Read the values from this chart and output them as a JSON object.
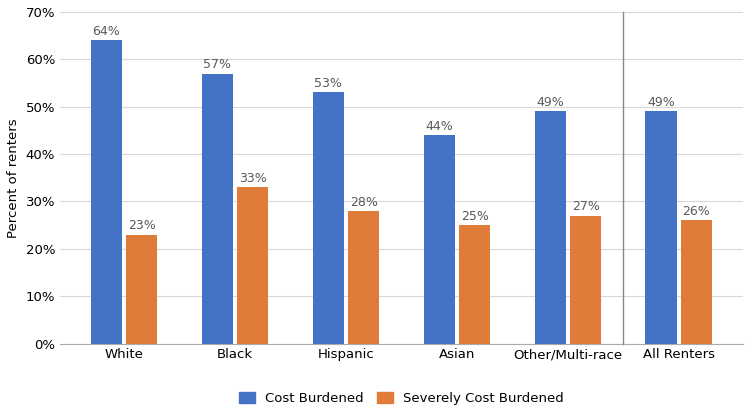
{
  "categories": [
    "White",
    "Black",
    "Hispanic",
    "Asian",
    "Other/Multi-race",
    "All Renters"
  ],
  "cost_burdened": [
    0.64,
    0.57,
    0.53,
    0.44,
    0.49,
    0.49
  ],
  "severely_cost_burdened": [
    0.23,
    0.33,
    0.28,
    0.25,
    0.27,
    0.26
  ],
  "cost_burdened_labels": [
    "64%",
    "57%",
    "53%",
    "44%",
    "49%",
    "49%"
  ],
  "severely_cost_burdened_labels": [
    "23%",
    "33%",
    "28%",
    "25%",
    "27%",
    "26%"
  ],
  "bar_color_blue": "#4472C4",
  "bar_color_orange": "#E07B39",
  "ylabel": "Percent of renters",
  "ylim": [
    0,
    0.7
  ],
  "yticks": [
    0.0,
    0.1,
    0.2,
    0.3,
    0.4,
    0.5,
    0.6,
    0.7
  ],
  "ytick_labels": [
    "0%",
    "10%",
    "20%",
    "30%",
    "40%",
    "50%",
    "60%",
    "70%"
  ],
  "legend_labels": [
    "Cost Burdened",
    "Severely Cost Burdened"
  ],
  "bar_width": 0.28,
  "bar_gap": 0.04,
  "divider_after_index": 4,
  "background_color": "#ffffff",
  "grid_color": "#d9d9d9",
  "font_size_labels": 9,
  "font_size_axis": 9.5,
  "font_size_legend": 9.5,
  "label_color": "#595959"
}
